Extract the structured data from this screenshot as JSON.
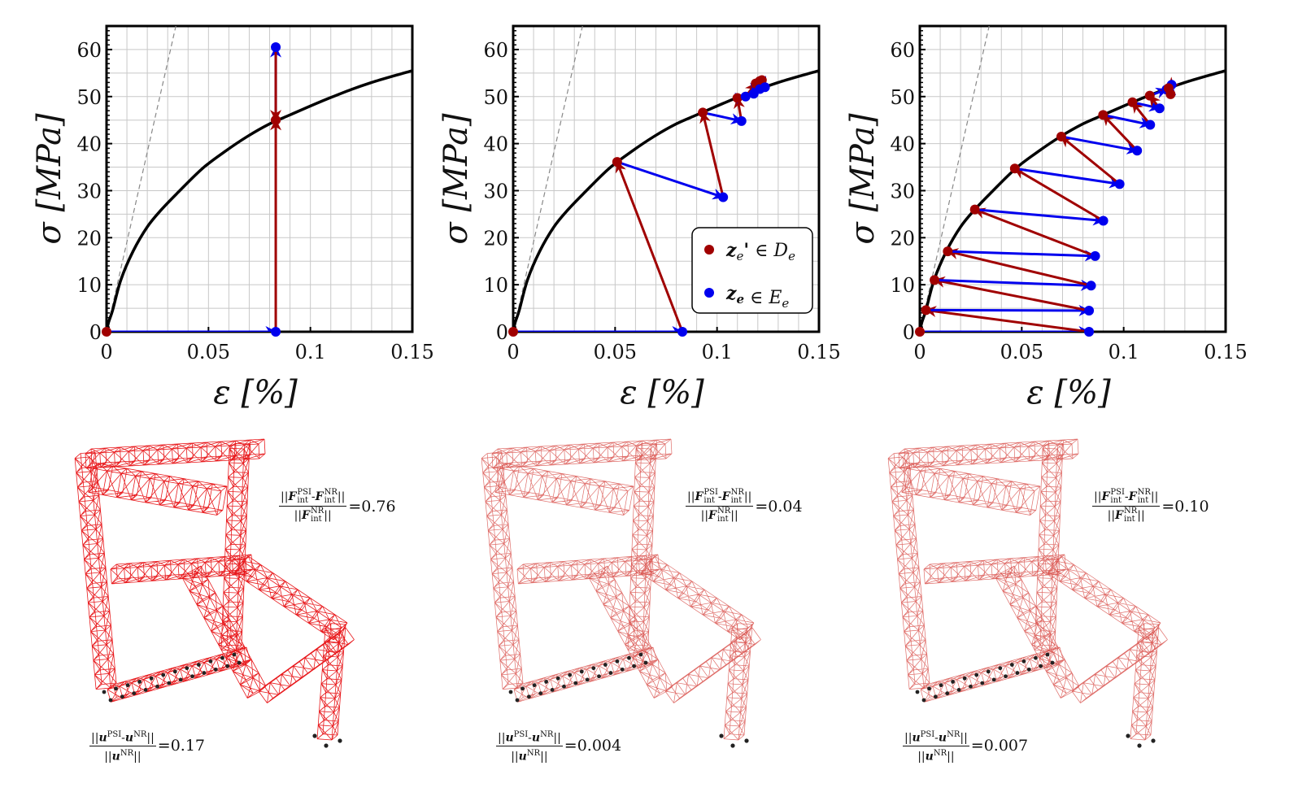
{
  "colors": {
    "de_point": "#a00000",
    "ee_point": "#0000ee",
    "curve": "#000000",
    "elastic_line": "#888888",
    "truss_strong": "#e8191c",
    "truss_light": "#d9534f",
    "support": "#222222"
  },
  "legend": {
    "placement": "lower-right",
    "entries": [
      {
        "symbol": "z",
        "sub": "e",
        "prime": "'",
        "rel": " ∈ ",
        "set": "D",
        "set_sub": "e",
        "color": "#a00000"
      },
      {
        "symbol": "z",
        "sub": "e",
        "prime": "",
        "rel": " ∈ ",
        "set": "E",
        "set_sub": "e",
        "color": "#0000ee"
      }
    ]
  },
  "annotations": {
    "force": {
      "symbol": "F",
      "sub": "int",
      "sup_psi": "PSI",
      "sup_nr": "NR",
      "minus": "-",
      "norm": "||"
    },
    "disp": {
      "symbol": "u",
      "sup_psi": "PSI",
      "sup_nr": "NR",
      "minus": "-",
      "norm": "||"
    },
    "panels": [
      {
        "force_value": "=0.76",
        "disp_value": "=0.17"
      },
      {
        "force_value": "=0.04",
        "disp_value": "=0.004"
      },
      {
        "force_value": "=0.10",
        "disp_value": "=0.007"
      }
    ]
  },
  "chart_data": [
    {
      "type": "line",
      "xlabel": "ε [%]",
      "ylabel": "σ [MPa]",
      "xlim": [
        0,
        0.15
      ],
      "ylim": [
        0,
        65
      ],
      "xticks": [
        "0",
        "0.05",
        "0.1",
        "0.15"
      ],
      "yticks": [
        "0",
        "10",
        "20",
        "30",
        "40",
        "50",
        "60"
      ],
      "grid": true,
      "curve": {
        "x": [
          0,
          0.001,
          0.003,
          0.007,
          0.013,
          0.02,
          0.027,
          0.035,
          0.047,
          0.058,
          0.069,
          0.08,
          0.09,
          0.1,
          0.11,
          0.12,
          0.13,
          0.14,
          0.15
        ],
        "y": [
          0,
          2,
          4.6,
          11,
          17.1,
          22.3,
          26,
          29.6,
          34.7,
          38.3,
          41.5,
          44.2,
          46.1,
          48,
          49.8,
          51.5,
          53,
          54.3,
          55.5
        ]
      },
      "elastic_line": [
        [
          0,
          0
        ],
        [
          0.034,
          65
        ]
      ],
      "iterates": [
        [
          0,
          0
        ],
        [
          0.083,
          0
        ],
        [
          0.083,
          45
        ],
        [
          0.083,
          60.5
        ],
        [
          0.083,
          45
        ]
      ],
      "legend": false
    },
    {
      "type": "line",
      "xlabel": "ε [%]",
      "ylabel": "σ [MPa]",
      "xlim": [
        0,
        0.15
      ],
      "ylim": [
        0,
        65
      ],
      "xticks": [
        "0",
        "0.05",
        "0.1",
        "0.15"
      ],
      "yticks": [
        "0",
        "10",
        "20",
        "30",
        "40",
        "50",
        "60"
      ],
      "grid": true,
      "curve": {
        "x": [
          0,
          0.001,
          0.003,
          0.007,
          0.013,
          0.02,
          0.027,
          0.035,
          0.047,
          0.058,
          0.069,
          0.08,
          0.09,
          0.1,
          0.11,
          0.12,
          0.13,
          0.14,
          0.15
        ],
        "y": [
          0,
          2,
          4.6,
          11,
          17.1,
          22.3,
          26,
          29.6,
          34.7,
          38.3,
          41.5,
          44.2,
          46.1,
          48,
          49.8,
          51.5,
          53,
          54.3,
          55.5
        ]
      },
      "elastic_line": [
        [
          0,
          0
        ],
        [
          0.034,
          65
        ]
      ],
      "iterates": [
        [
          0,
          0
        ],
        [
          0.083,
          0
        ],
        [
          0.051,
          36.1
        ],
        [
          0.103,
          28.6
        ],
        [
          0.093,
          46.6
        ],
        [
          0.112,
          44.8
        ],
        [
          0.11,
          49.7
        ],
        [
          0.114,
          50
        ],
        [
          0.119,
          52.8
        ],
        [
          0.118,
          50.6
        ],
        [
          0.121,
          53.3
        ],
        [
          0.121,
          51.6
        ],
        [
          0.122,
          53.5
        ],
        [
          0.1235,
          52
        ]
      ],
      "legend": true
    },
    {
      "type": "line",
      "xlabel": "ε [%]",
      "ylabel": "σ [MPa]",
      "xlim": [
        0,
        0.15
      ],
      "ylim": [
        0,
        65
      ],
      "xticks": [
        "0",
        "0.05",
        "0.1",
        "0.15"
      ],
      "yticks": [
        "0",
        "10",
        "20",
        "30",
        "40",
        "50",
        "60"
      ],
      "grid": true,
      "curve": {
        "x": [
          0,
          0.001,
          0.003,
          0.007,
          0.013,
          0.02,
          0.027,
          0.035,
          0.047,
          0.058,
          0.069,
          0.08,
          0.09,
          0.1,
          0.11,
          0.12,
          0.13,
          0.14,
          0.15
        ],
        "y": [
          0,
          2,
          4.6,
          11,
          17.1,
          22.3,
          26,
          29.6,
          34.7,
          38.3,
          41.5,
          44.2,
          46.1,
          48,
          49.8,
          51.5,
          53,
          54.3,
          55.5
        ]
      },
      "elastic_line": [
        [
          0,
          0
        ],
        [
          0.034,
          65
        ]
      ],
      "iterates": [
        [
          0,
          0
        ],
        [
          0.083,
          0
        ],
        [
          0.003,
          4.6
        ],
        [
          0.083,
          4.5
        ],
        [
          0.0072,
          11
        ],
        [
          0.084,
          9.8
        ],
        [
          0.0137,
          17.1
        ],
        [
          0.086,
          16.1
        ],
        [
          0.027,
          26
        ],
        [
          0.09,
          23.6
        ],
        [
          0.0466,
          34.7
        ],
        [
          0.098,
          31.4
        ],
        [
          0.0694,
          41.5
        ],
        [
          0.1066,
          38.5
        ],
        [
          0.0899,
          46.1
        ],
        [
          0.113,
          44
        ],
        [
          0.1043,
          48.8
        ],
        [
          0.1176,
          47.5
        ],
        [
          0.1128,
          50.2
        ],
        [
          0.121,
          51.5
        ],
        [
          0.123,
          50.5
        ],
        [
          0.1235,
          52.5
        ],
        [
          0.122,
          51.8
        ]
      ],
      "legend": false
    }
  ]
}
